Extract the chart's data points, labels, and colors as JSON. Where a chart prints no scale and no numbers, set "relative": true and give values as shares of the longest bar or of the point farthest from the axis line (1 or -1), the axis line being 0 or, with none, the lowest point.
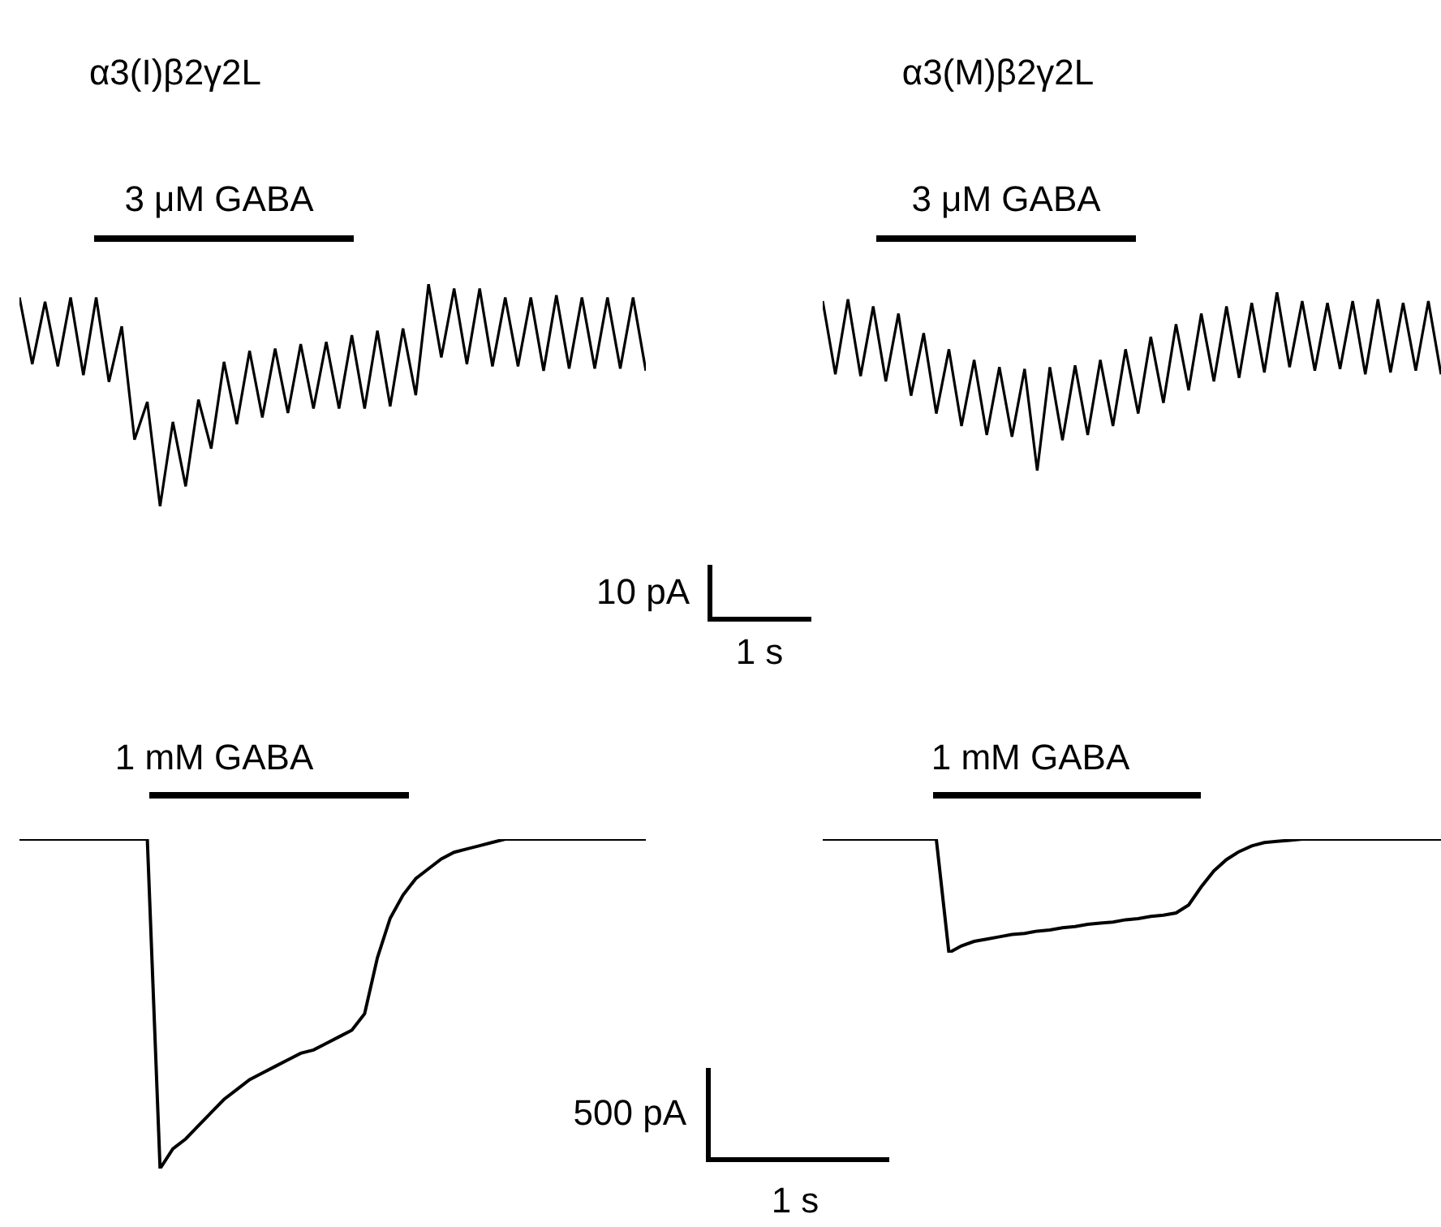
{
  "chart_data": [
    {
      "type": "line",
      "title": "α3(I)β2γ2L",
      "annotations": [
        "3 μM GABA"
      ],
      "relative": true,
      "color": "#000000",
      "categories": [
        null,
        null,
        null,
        null,
        null,
        null,
        null,
        null,
        null,
        null,
        null,
        null,
        null,
        null,
        null,
        null,
        null,
        null,
        null,
        null,
        null,
        null,
        null,
        null,
        null,
        null,
        null,
        null,
        null,
        null,
        null,
        null,
        null,
        null,
        null,
        null,
        null,
        null,
        null,
        null,
        null,
        null,
        null,
        null,
        null,
        null,
        null,
        null,
        null,
        null
      ],
      "values": [
        0.94,
        0.64,
        0.92,
        0.63,
        0.94,
        0.59,
        0.94,
        0.56,
        0.81,
        0.3,
        0.47,
        0.0,
        0.38,
        0.09,
        0.48,
        0.26,
        0.65,
        0.37,
        0.7,
        0.4,
        0.71,
        0.42,
        0.73,
        0.44,
        0.74,
        0.44,
        0.77,
        0.44,
        0.79,
        0.45,
        0.8,
        0.5,
        1.0,
        0.67,
        0.98,
        0.64,
        0.98,
        0.63,
        0.94,
        0.63,
        0.94,
        0.61,
        0.95,
        0.62,
        0.94,
        0.62,
        0.94,
        0.62,
        0.94,
        0.61
      ]
    },
    {
      "type": "line",
      "title": "α3(M)β2γ2L",
      "annotations": [
        "3 μM GABA",
        "10 pA",
        "1 s"
      ],
      "relative": true,
      "color": "#000000",
      "categories": [
        null,
        null,
        null,
        null,
        null,
        null,
        null,
        null,
        null,
        null,
        null,
        null,
        null,
        null,
        null,
        null,
        null,
        null,
        null,
        null,
        null,
        null,
        null,
        null,
        null,
        null,
        null,
        null,
        null,
        null,
        null,
        null,
        null,
        null,
        null,
        null,
        null,
        null,
        null,
        null,
        null,
        null,
        null,
        null,
        null,
        null,
        null,
        null,
        null,
        null
      ],
      "values": [
        0.95,
        0.54,
        0.96,
        0.53,
        0.92,
        0.5,
        0.88,
        0.42,
        0.77,
        0.32,
        0.68,
        0.25,
        0.62,
        0.2,
        0.58,
        0.19,
        0.57,
        0.0,
        0.58,
        0.17,
        0.59,
        0.2,
        0.62,
        0.25,
        0.68,
        0.32,
        0.75,
        0.38,
        0.82,
        0.45,
        0.88,
        0.5,
        0.92,
        0.52,
        0.94,
        0.55,
        1.0,
        0.58,
        0.95,
        0.56,
        0.94,
        0.57,
        0.95,
        0.54,
        0.96,
        0.55,
        0.94,
        0.56,
        0.95,
        0.54
      ]
    },
    {
      "type": "line",
      "annotations": [
        "1 mM GABA"
      ],
      "relative": true,
      "color": "#000000",
      "categories": [
        null,
        null,
        null,
        null,
        null,
        null,
        null,
        null,
        null,
        null,
        null,
        null,
        null,
        null,
        null,
        null,
        null,
        null,
        null,
        null,
        null,
        null,
        null,
        null,
        null,
        null,
        null,
        null,
        null,
        null,
        null,
        null,
        null,
        null,
        null,
        null,
        null,
        null,
        null,
        null,
        null,
        null,
        null,
        null,
        null,
        null,
        null,
        null,
        null,
        null
      ],
      "values": [
        1,
        1,
        1,
        1,
        1,
        1,
        1,
        1,
        1,
        1,
        1,
        0.0,
        0.06,
        0.09,
        0.13,
        0.17,
        0.21,
        0.24,
        0.27,
        0.29,
        0.31,
        0.33,
        0.35,
        0.36,
        0.38,
        0.4,
        0.42,
        0.47,
        0.64,
        0.76,
        0.83,
        0.88,
        0.91,
        0.94,
        0.96,
        0.97,
        0.98,
        0.99,
        1,
        1,
        1,
        1,
        1,
        1,
        1,
        1,
        1,
        1,
        1,
        1
      ]
    },
    {
      "type": "line",
      "annotations": [
        "1 mM GABA",
        "500 pA",
        "1 s"
      ],
      "relative": true,
      "color": "#000000",
      "categories": [
        null,
        null,
        null,
        null,
        null,
        null,
        null,
        null,
        null,
        null,
        null,
        null,
        null,
        null,
        null,
        null,
        null,
        null,
        null,
        null,
        null,
        null,
        null,
        null,
        null,
        null,
        null,
        null,
        null,
        null,
        null,
        null,
        null,
        null,
        null,
        null,
        null,
        null,
        null,
        null,
        null,
        null,
        null,
        null,
        null,
        null,
        null,
        null,
        null,
        null
      ],
      "values": [
        1,
        1,
        1,
        1,
        1,
        1,
        1,
        1,
        1,
        1,
        0.0,
        0.06,
        0.1,
        0.12,
        0.14,
        0.16,
        0.17,
        0.19,
        0.2,
        0.22,
        0.23,
        0.25,
        0.26,
        0.27,
        0.29,
        0.3,
        0.32,
        0.33,
        0.35,
        0.42,
        0.58,
        0.72,
        0.82,
        0.89,
        0.94,
        0.97,
        0.98,
        0.99,
        1,
        1,
        1,
        1,
        1,
        1,
        1,
        1,
        1,
        1,
        1,
        1
      ]
    }
  ]
}
